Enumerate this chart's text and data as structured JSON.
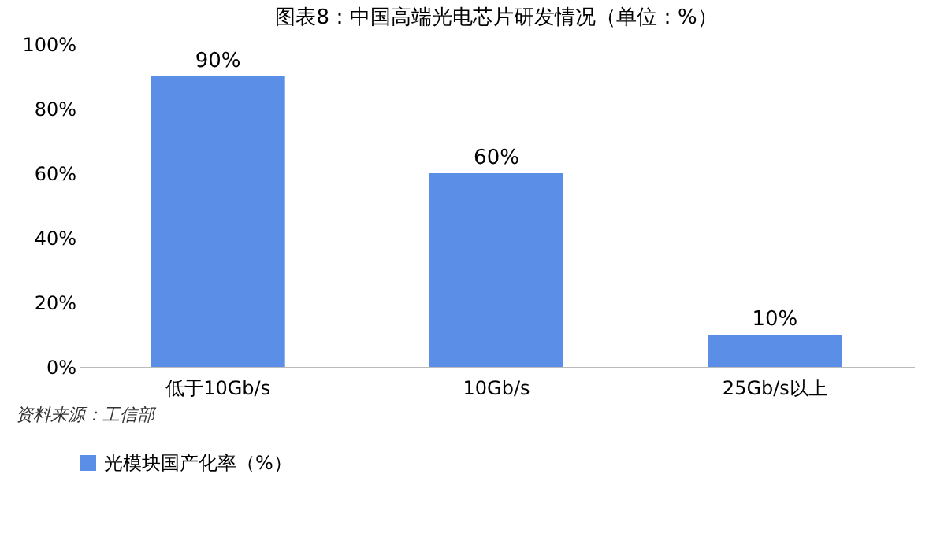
{
  "chart_data": {
    "type": "bar",
    "title": "图表8：中国高端光电芯片研发情况（单位：%）",
    "categories": [
      "低于10Gb/s",
      "10Gb/s",
      "25Gb/s以上"
    ],
    "series": [
      {
        "name": "光模块国产化率（%）",
        "color": "#5b8ee6",
        "values": [
          90,
          60,
          10
        ],
        "value_labels": [
          "90%",
          "60%",
          "10%"
        ]
      }
    ],
    "ylim": [
      0,
      100
    ],
    "yticks": [
      {
        "value": 0,
        "label": "0%"
      },
      {
        "value": 20,
        "label": "20%"
      },
      {
        "value": 40,
        "label": "40%"
      },
      {
        "value": 60,
        "label": "60%"
      },
      {
        "value": 80,
        "label": "80%"
      },
      {
        "value": 100,
        "label": "100%"
      }
    ],
    "legend": "bottom",
    "annotations": [
      "资料来源：工信部"
    ]
  }
}
